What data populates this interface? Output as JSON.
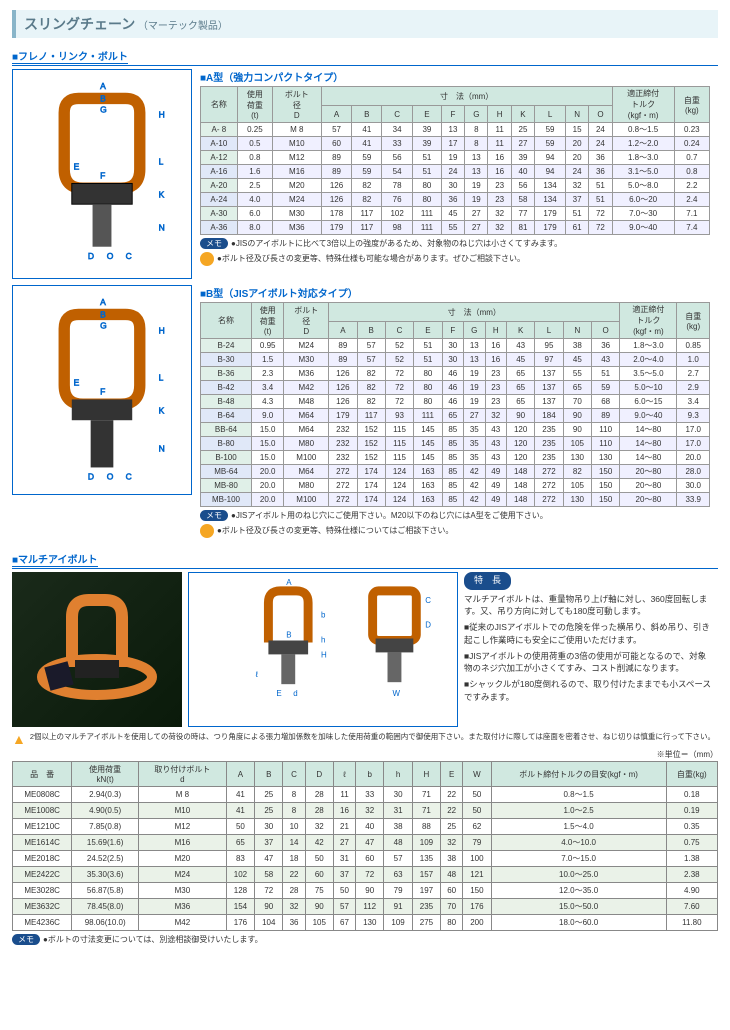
{
  "header": {
    "title": "スリングチェーン",
    "sub": "（マーテック製品）"
  },
  "section1": {
    "label": "フレノ・リンク・ボルト"
  },
  "aType": {
    "title": "A型（強力コンパクトタイプ）",
    "thead1": [
      "名称",
      "使用荷重(t)",
      "ボルト径D",
      "寸　法（mm）",
      "適正締付トルク(kgf・m)",
      "自重(kg)"
    ],
    "dims": [
      "A",
      "B",
      "C",
      "E",
      "F",
      "G",
      "H",
      "K",
      "L",
      "N",
      "O"
    ],
    "rows": [
      [
        "A- 8",
        "0.25",
        "M 8",
        "57",
        "41",
        "34",
        "39",
        "13",
        "8",
        "11",
        "25",
        "59",
        "15",
        "24",
        "0.8～1.5",
        "0.23"
      ],
      [
        "A-10",
        "0.5",
        "M10",
        "60",
        "41",
        "33",
        "39",
        "17",
        "8",
        "11",
        "27",
        "59",
        "20",
        "24",
        "1.2～2.0",
        "0.24"
      ],
      [
        "A-12",
        "0.8",
        "M12",
        "89",
        "59",
        "56",
        "51",
        "19",
        "13",
        "16",
        "39",
        "94",
        "20",
        "36",
        "1.8～3.0",
        "0.7"
      ],
      [
        "A-16",
        "1.6",
        "M16",
        "89",
        "59",
        "54",
        "51",
        "24",
        "13",
        "16",
        "40",
        "94",
        "24",
        "36",
        "3.1～5.0",
        "0.8"
      ],
      [
        "A-20",
        "2.5",
        "M20",
        "126",
        "82",
        "78",
        "80",
        "30",
        "19",
        "23",
        "56",
        "134",
        "32",
        "51",
        "5.0～8.0",
        "2.2"
      ],
      [
        "A-24",
        "4.0",
        "M24",
        "126",
        "82",
        "76",
        "80",
        "36",
        "19",
        "23",
        "58",
        "134",
        "37",
        "51",
        "6.0～20",
        "2.4"
      ],
      [
        "A-30",
        "6.0",
        "M30",
        "178",
        "117",
        "102",
        "111",
        "45",
        "27",
        "32",
        "77",
        "179",
        "51",
        "72",
        "7.0～30",
        "7.1"
      ],
      [
        "A-36",
        "8.0",
        "M36",
        "179",
        "117",
        "98",
        "111",
        "55",
        "27",
        "32",
        "81",
        "179",
        "61",
        "72",
        "9.0～40",
        "7.4"
      ]
    ],
    "memo1": "●JISのアイボルトに比べて3倍以上の強度があるため、対象物のねじ穴は小さくてすみます。",
    "memo2": "●ボルト径及び長さの変更等、特殊仕様も可能な場合があります。ぜひご相談下さい。"
  },
  "bType": {
    "title": "B型（JISアイボルト対応タイプ）",
    "rows": [
      [
        "B-24",
        "0.95",
        "M24",
        "89",
        "57",
        "52",
        "51",
        "30",
        "13",
        "16",
        "43",
        "95",
        "38",
        "36",
        "1.8～3.0",
        "0.85"
      ],
      [
        "B-30",
        "1.5",
        "M30",
        "89",
        "57",
        "52",
        "51",
        "30",
        "13",
        "16",
        "45",
        "97",
        "45",
        "43",
        "2.0～4.0",
        "1.0"
      ],
      [
        "B-36",
        "2.3",
        "M36",
        "126",
        "82",
        "72",
        "80",
        "46",
        "19",
        "23",
        "65",
        "137",
        "55",
        "51",
        "3.5～5.0",
        "2.7"
      ],
      [
        "B-42",
        "3.4",
        "M42",
        "126",
        "82",
        "72",
        "80",
        "46",
        "19",
        "23",
        "65",
        "137",
        "65",
        "59",
        "5.0～10",
        "2.9"
      ],
      [
        "B-48",
        "4.3",
        "M48",
        "126",
        "82",
        "72",
        "80",
        "46",
        "19",
        "23",
        "65",
        "137",
        "70",
        "68",
        "6.0～15",
        "3.4"
      ],
      [
        "B-64",
        "9.0",
        "M64",
        "179",
        "117",
        "93",
        "111",
        "65",
        "27",
        "32",
        "90",
        "184",
        "90",
        "89",
        "9.0～40",
        "9.3"
      ],
      [
        "BB-64",
        "15.0",
        "M64",
        "232",
        "152",
        "115",
        "145",
        "85",
        "35",
        "43",
        "120",
        "235",
        "90",
        "110",
        "14～80",
        "17.0"
      ],
      [
        "B-80",
        "15.0",
        "M80",
        "232",
        "152",
        "115",
        "145",
        "85",
        "35",
        "43",
        "120",
        "235",
        "105",
        "110",
        "14～80",
        "17.0"
      ],
      [
        "B-100",
        "15.0",
        "M100",
        "232",
        "152",
        "115",
        "145",
        "85",
        "35",
        "43",
        "120",
        "235",
        "130",
        "130",
        "14～80",
        "20.0"
      ],
      [
        "MB-64",
        "20.0",
        "M64",
        "272",
        "174",
        "124",
        "163",
        "85",
        "42",
        "49",
        "148",
        "272",
        "82",
        "150",
        "20～80",
        "28.0"
      ],
      [
        "MB-80",
        "20.0",
        "M80",
        "272",
        "174",
        "124",
        "163",
        "85",
        "42",
        "49",
        "148",
        "272",
        "105",
        "150",
        "20～80",
        "30.0"
      ],
      [
        "MB-100",
        "20.0",
        "M100",
        "272",
        "174",
        "124",
        "163",
        "85",
        "42",
        "49",
        "148",
        "272",
        "130",
        "150",
        "20～80",
        "33.9"
      ]
    ],
    "memo1": "●JISアイボルト用のねじ穴にご使用下さい。M20以下のねじ穴にはA型をご使用下さい。",
    "memo2": "●ボルト径及び長さの変更等、特殊仕様についてはご相談下さい。"
  },
  "section2": {
    "label": "マルチアイボルト"
  },
  "features": {
    "label": "特　長",
    "p1": "マルチアイボルトは、重量物吊り上げ軸に対し、360度回転します。又、吊り方向に対しても180度可動します。",
    "b1": "■従来のJISアイボルトでの危険を伴った横吊り、斜め吊り、引き起こし作業時にも安全にご使用いただけます。",
    "b2": "■JISアイボルトの使用荷重の3倍の使用が可能となるので、対象物のネジ穴加工が小さくてすみ、コスト削減になります。",
    "b3": "■シャックルが180度倒れるので、取り付けたままでも小スペースですみます。"
  },
  "warn": "2個以上のマルチアイボルトを使用しての荷役の時は、つり角度による張力増加係数を加味した使用荷重の範囲内で御使用下さい。また取付けに際しては座面を密着させ、ねじ切りは慎重に行って下さい。",
  "unit": "※単位＝（mm）",
  "spec2": {
    "thead": [
      "品　番",
      "使用荷重 kN(t)",
      "取り付けボルト d",
      "A",
      "B",
      "C",
      "D",
      "ℓ",
      "b",
      "h",
      "H",
      "E",
      "W",
      "ボルト締付トルクの目安(kgf・m)",
      "自重(kg)"
    ],
    "rows": [
      [
        "ME0808C",
        "2.94(0.3)",
        "M 8",
        "41",
        "25",
        "8",
        "28",
        "11",
        "33",
        "30",
        "71",
        "22",
        "50",
        "0.8～1.5",
        "0.18"
      ],
      [
        "ME1008C",
        "4.90(0.5)",
        "M10",
        "41",
        "25",
        "8",
        "28",
        "16",
        "32",
        "31",
        "71",
        "22",
        "50",
        "1.0～2.5",
        "0.19"
      ],
      [
        "ME1210C",
        "7.85(0.8)",
        "M12",
        "50",
        "30",
        "10",
        "32",
        "21",
        "40",
        "38",
        "88",
        "25",
        "62",
        "1.5～4.0",
        "0.35"
      ],
      [
        "ME1614C",
        "15.69(1.6)",
        "M16",
        "65",
        "37",
        "14",
        "42",
        "27",
        "47",
        "48",
        "109",
        "32",
        "79",
        "4.0～10.0",
        "0.75"
      ],
      [
        "ME2018C",
        "24.52(2.5)",
        "M20",
        "83",
        "47",
        "18",
        "50",
        "31",
        "60",
        "57",
        "135",
        "38",
        "100",
        "7.0～15.0",
        "1.38"
      ],
      [
        "ME2422C",
        "35.30(3.6)",
        "M24",
        "102",
        "58",
        "22",
        "60",
        "37",
        "72",
        "63",
        "157",
        "48",
        "121",
        "10.0～25.0",
        "2.38"
      ],
      [
        "ME3028C",
        "56.87(5.8)",
        "M30",
        "128",
        "72",
        "28",
        "75",
        "50",
        "90",
        "79",
        "197",
        "60",
        "150",
        "12.0～35.0",
        "4.90"
      ],
      [
        "ME3632C",
        "78.45(8.0)",
        "M36",
        "154",
        "90",
        "32",
        "90",
        "57",
        "112",
        "91",
        "235",
        "70",
        "176",
        "15.0～50.0",
        "7.60"
      ],
      [
        "ME4236C",
        "98.06(10.0)",
        "M42",
        "176",
        "104",
        "36",
        "105",
        "67",
        "130",
        "109",
        "275",
        "80",
        "200",
        "18.0～60.0",
        "11.80"
      ]
    ]
  },
  "memo3": "●ボルトの寸法変更については、別途相談御受けいたします。",
  "colors": {
    "blue": "#0066cc",
    "orange": "#f5a623",
    "header_bg": "#d0e8e0",
    "odd": "#eaf2e8"
  }
}
